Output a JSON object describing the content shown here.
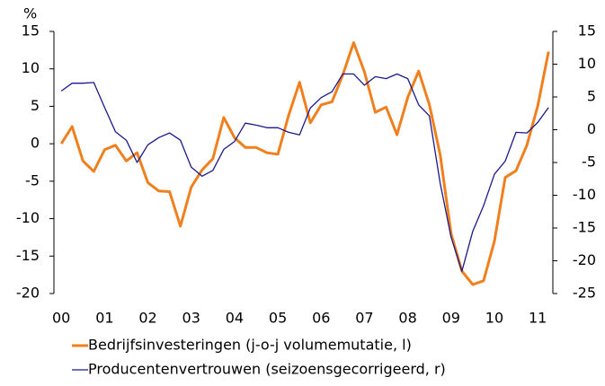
{
  "chart_data": {
    "type": "line",
    "y_label": "%",
    "x": [
      0,
      0.25,
      0.5,
      0.75,
      1,
      1.25,
      1.5,
      1.75,
      2,
      2.25,
      2.5,
      2.75,
      3,
      3.25,
      3.5,
      3.75,
      4,
      4.25,
      4.5,
      4.75,
      5,
      5.25,
      5.5,
      5.75,
      6,
      6.25,
      6.5,
      6.75,
      7,
      7.25,
      7.5,
      7.75,
      8,
      8.25,
      8.5,
      8.75,
      9,
      9.25,
      9.5,
      9.75,
      10,
      10.25,
      10.5,
      10.75,
      11,
      11.25
    ],
    "xlim": [
      -0.17,
      11.35
    ],
    "xticks": [
      {
        "value": 0,
        "label": "00"
      },
      {
        "value": 1,
        "label": "01"
      },
      {
        "value": 2,
        "label": "02"
      },
      {
        "value": 3,
        "label": "03"
      },
      {
        "value": 4,
        "label": "04"
      },
      {
        "value": 5,
        "label": "05"
      },
      {
        "value": 6,
        "label": "06"
      },
      {
        "value": 7,
        "label": "07"
      },
      {
        "value": 8,
        "label": "08"
      },
      {
        "value": 9,
        "label": "09"
      },
      {
        "value": 10,
        "label": "10"
      },
      {
        "value": 11,
        "label": "11"
      }
    ],
    "ylim": [
      -20,
      15
    ],
    "yticks": [
      15,
      10,
      5,
      0,
      -5,
      -10,
      -15,
      -20
    ],
    "y2lim": [
      -25,
      15
    ],
    "y2ticks": [
      15,
      10,
      5,
      0,
      -5,
      -10,
      -15,
      -20,
      -25
    ],
    "series": [
      {
        "name": "Bedrijfsinvesteringen (j-o-j volumemutatie, l)",
        "color": "#f07f1e",
        "axis": "y",
        "values": [
          0,
          2.3,
          -2.3,
          -3.7,
          -0.8,
          -0.2,
          -2.3,
          -1.2,
          -5.2,
          -6.3,
          -6.4,
          -11,
          -5.8,
          -3.5,
          -2,
          3.5,
          0.8,
          -0.5,
          -0.5,
          -1.2,
          -1.4,
          3.8,
          8.2,
          2.8,
          5.2,
          5.6,
          9.2,
          13.5,
          9.6,
          4.2,
          4.9,
          1.2,
          6.2,
          9.7,
          5.2,
          -1.5,
          -12,
          -17,
          -18.8,
          -18.3,
          -13,
          -4.5,
          -3.6,
          -0.2,
          5,
          12.3
        ]
      },
      {
        "name": "Producentenvertrouwen (seizoensgecorrigeerd, r)",
        "color": "#1a1a8c",
        "axis": "y2",
        "values": [
          5.9,
          7.1,
          7.1,
          7.2,
          3.4,
          -0.3,
          -1.6,
          -5,
          -2.3,
          -1.2,
          -0.5,
          -1.6,
          -5.7,
          -7.1,
          -6.2,
          -3,
          -1.8,
          1,
          0.7,
          0.3,
          0.3,
          -0.4,
          -0.8,
          3.3,
          4.9,
          5.8,
          8.5,
          8.5,
          6.8,
          8.1,
          7.8,
          8.5,
          7.8,
          3.8,
          2.1,
          -8.2,
          -16.4,
          -21.6,
          -15.5,
          -11.6,
          -6.8,
          -4.8,
          -0.4,
          -0.5,
          1.1,
          3.4
        ]
      }
    ]
  }
}
